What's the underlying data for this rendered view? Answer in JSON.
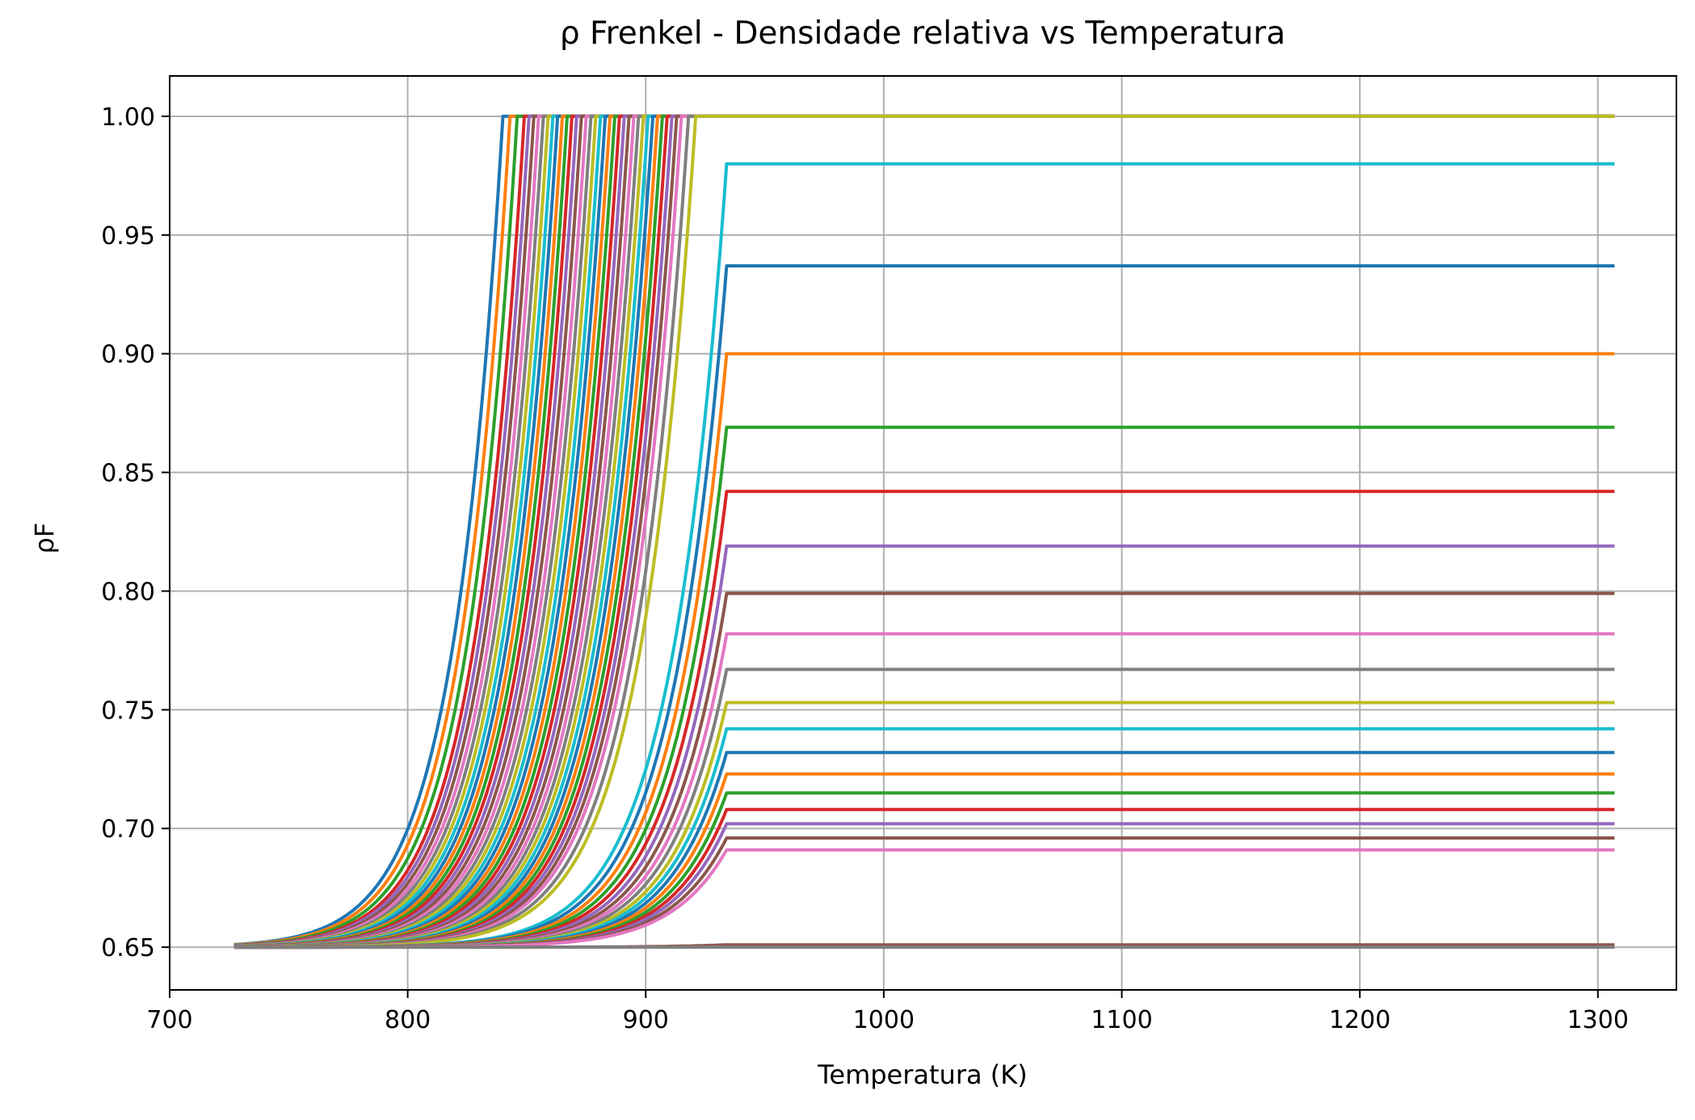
{
  "chart_data": {
    "type": "line",
    "title": "ρ Frenkel - Densidade relativa vs Temperatura",
    "xlabel": "Temperatura (K)",
    "ylabel": "ρF",
    "xlim": [
      700,
      1333
    ],
    "ylim": [
      0.632,
      1.017
    ],
    "x_ticks": [
      700,
      800,
      900,
      1000,
      1100,
      1200,
      1300
    ],
    "y_ticks": [
      0.65,
      0.7,
      0.75,
      0.8,
      0.85,
      0.9,
      0.95,
      1.0
    ],
    "x_tick_labels": [
      "700",
      "800",
      "900",
      "1000",
      "1100",
      "1200",
      "1300"
    ],
    "y_tick_labels": [
      "0.65",
      "0.70",
      "0.75",
      "0.80",
      "0.85",
      "0.90",
      "0.95",
      "1.00"
    ],
    "grid": true,
    "legend": "none",
    "model": "rho = 0.65 + (plateau - 0.65) * (T/T_end)^40 for T < T_end, else plateau; T from 727 to 1307 K",
    "colors": [
      "#1f77b4",
      "#ff7f0e",
      "#2ca02c",
      "#d62728",
      "#9467bd",
      "#8c564b",
      "#e377c2",
      "#7f7f7f",
      "#bcbd22",
      "#17becf"
    ],
    "series": [
      {
        "plateau": 1.0,
        "end": 840,
        "color": "#1f77b4"
      },
      {
        "plateau": 1.0,
        "end": 843,
        "color": "#ff7f0e"
      },
      {
        "plateau": 1.0,
        "end": 846,
        "color": "#2ca02c"
      },
      {
        "plateau": 1.0,
        "end": 849,
        "color": "#d62728"
      },
      {
        "plateau": 1.0,
        "end": 851,
        "color": "#9467bd"
      },
      {
        "plateau": 1.0,
        "end": 853,
        "color": "#8c564b"
      },
      {
        "plateau": 1.0,
        "end": 855,
        "color": "#e377c2"
      },
      {
        "plateau": 1.0,
        "end": 857,
        "color": "#7f7f7f"
      },
      {
        "plateau": 1.0,
        "end": 859,
        "color": "#bcbd22"
      },
      {
        "plateau": 1.0,
        "end": 861,
        "color": "#17becf"
      },
      {
        "plateau": 1.0,
        "end": 863,
        "color": "#1f77b4"
      },
      {
        "plateau": 1.0,
        "end": 865,
        "color": "#ff7f0e"
      },
      {
        "plateau": 1.0,
        "end": 867,
        "color": "#2ca02c"
      },
      {
        "plateau": 1.0,
        "end": 869,
        "color": "#d62728"
      },
      {
        "plateau": 1.0,
        "end": 871,
        "color": "#9467bd"
      },
      {
        "plateau": 1.0,
        "end": 873,
        "color": "#8c564b"
      },
      {
        "plateau": 1.0,
        "end": 875,
        "color": "#e377c2"
      },
      {
        "plateau": 1.0,
        "end": 877,
        "color": "#7f7f7f"
      },
      {
        "plateau": 1.0,
        "end": 879,
        "color": "#bcbd22"
      },
      {
        "plateau": 1.0,
        "end": 881,
        "color": "#17becf"
      },
      {
        "plateau": 1.0,
        "end": 883,
        "color": "#1f77b4"
      },
      {
        "plateau": 1.0,
        "end": 885,
        "color": "#ff7f0e"
      },
      {
        "plateau": 1.0,
        "end": 887,
        "color": "#2ca02c"
      },
      {
        "plateau": 1.0,
        "end": 889,
        "color": "#d62728"
      },
      {
        "plateau": 1.0,
        "end": 891,
        "color": "#9467bd"
      },
      {
        "plateau": 1.0,
        "end": 893,
        "color": "#8c564b"
      },
      {
        "plateau": 1.0,
        "end": 895,
        "color": "#e377c2"
      },
      {
        "plateau": 1.0,
        "end": 897,
        "color": "#7f7f7f"
      },
      {
        "plateau": 1.0,
        "end": 899,
        "color": "#bcbd22"
      },
      {
        "plateau": 1.0,
        "end": 901,
        "color": "#17becf"
      },
      {
        "plateau": 1.0,
        "end": 903,
        "color": "#1f77b4"
      },
      {
        "plateau": 1.0,
        "end": 905,
        "color": "#ff7f0e"
      },
      {
        "plateau": 1.0,
        "end": 907,
        "color": "#2ca02c"
      },
      {
        "plateau": 1.0,
        "end": 909,
        "color": "#d62728"
      },
      {
        "plateau": 1.0,
        "end": 911,
        "color": "#9467bd"
      },
      {
        "plateau": 1.0,
        "end": 913,
        "color": "#8c564b"
      },
      {
        "plateau": 1.0,
        "end": 915,
        "color": "#e377c2"
      },
      {
        "plateau": 1.0,
        "end": 918,
        "color": "#7f7f7f"
      },
      {
        "plateau": 1.0,
        "end": 921,
        "color": "#bcbd22"
      },
      {
        "plateau": 0.98,
        "end": 934,
        "color": "#17becf"
      },
      {
        "plateau": 0.937,
        "end": 934,
        "color": "#1f77b4"
      },
      {
        "plateau": 0.9,
        "end": 934,
        "color": "#ff7f0e"
      },
      {
        "plateau": 0.869,
        "end": 934,
        "color": "#2ca02c"
      },
      {
        "plateau": 0.842,
        "end": 934,
        "color": "#d62728"
      },
      {
        "plateau": 0.819,
        "end": 934,
        "color": "#9467bd"
      },
      {
        "plateau": 0.799,
        "end": 934,
        "color": "#8c564b"
      },
      {
        "plateau": 0.782,
        "end": 934,
        "color": "#e377c2"
      },
      {
        "plateau": 0.767,
        "end": 934,
        "color": "#7f7f7f"
      },
      {
        "plateau": 0.753,
        "end": 934,
        "color": "#bcbd22"
      },
      {
        "plateau": 0.742,
        "end": 934,
        "color": "#17becf"
      },
      {
        "plateau": 0.732,
        "end": 934,
        "color": "#1f77b4"
      },
      {
        "plateau": 0.723,
        "end": 934,
        "color": "#ff7f0e"
      },
      {
        "plateau": 0.715,
        "end": 934,
        "color": "#2ca02c"
      },
      {
        "plateau": 0.708,
        "end": 934,
        "color": "#d62728"
      },
      {
        "plateau": 0.702,
        "end": 934,
        "color": "#9467bd"
      },
      {
        "plateau": 0.696,
        "end": 934,
        "color": "#8c564b"
      },
      {
        "plateau": 0.691,
        "end": 934,
        "color": "#e377c2"
      },
      {
        "plateau": 0.651,
        "end": 934,
        "color": "#8c564b"
      },
      {
        "plateau": 0.65,
        "end": 934,
        "color": "#7f7f7f"
      }
    ]
  }
}
